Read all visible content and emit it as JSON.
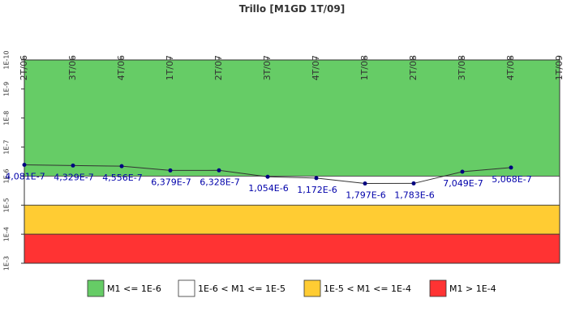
{
  "chart_data": {
    "type": "line",
    "title": "Trillo [M1GD 1T/09]",
    "categories": [
      "2T/06",
      "3T/06",
      "4T/06",
      "1T/07",
      "2T/07",
      "3T/07",
      "4T/07",
      "1T/08",
      "2T/08",
      "3T/08",
      "4T/08",
      "1T/09"
    ],
    "series": [
      {
        "name": "M1",
        "color": "#333333",
        "marker_color": "#000080",
        "values": [
          4.081e-07,
          4.329e-07,
          4.556e-07,
          6.379e-07,
          6.328e-07,
          1.054e-06,
          1.172e-06,
          1.797e-06,
          1.783e-06,
          7.049e-07,
          5.068e-07,
          null
        ],
        "value_labels": [
          "4,081E-7",
          "4,329E-7",
          "4,556E-7",
          "6,379E-7",
          "6,328E-7",
          "1,054E-6",
          "1,172E-6",
          "1,797E-6",
          "1,783E-6",
          "7,049E-7",
          "5,068E-7",
          null
        ]
      }
    ],
    "log_scale": true,
    "y_inverted": true,
    "ylim": [
      1e-10,
      0.001
    ],
    "yticks": [
      {
        "value": 1e-10,
        "label": "1E-10"
      },
      {
        "value": 1e-09,
        "label": "1E-9"
      },
      {
        "value": 1e-08,
        "label": "1E-8"
      },
      {
        "value": 1e-07,
        "label": "1E-7"
      },
      {
        "value": 1e-06,
        "label": "1E-6"
      },
      {
        "value": 1e-05,
        "label": "1E-5"
      },
      {
        "value": 0.0001,
        "label": "1E-4"
      },
      {
        "value": 0.001,
        "label": "1E-3"
      }
    ],
    "bands": [
      {
        "name": "M1 <= 1E-6",
        "color": "#66cc66",
        "range": [
          1e-10,
          1e-06
        ]
      },
      {
        "name": "1E-6 < M1 <= 1E-5",
        "color": "#ffffff",
        "range": [
          1e-06,
          1e-05
        ]
      },
      {
        "name": "1E-5 < M1 <= 1E-4",
        "color": "#ffcc33",
        "range": [
          1e-05,
          0.0001
        ]
      },
      {
        "name": "M1 > 1E-4",
        "color": "#ff3333",
        "range": [
          0.0001,
          0.001
        ]
      }
    ],
    "legend": "bottom"
  }
}
